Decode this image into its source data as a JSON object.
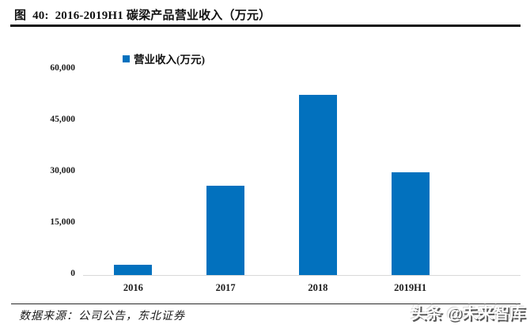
{
  "header": {
    "title": "图  40:  2016-2019H1 碳梁产品营业收入（万元）"
  },
  "legend": {
    "label": "营业收入(万元)"
  },
  "chart_data": {
    "type": "bar",
    "title": "2016-2019H1 碳梁产品营业收入（万元）",
    "categories": [
      "2016",
      "2017",
      "2018",
      "2019H1"
    ],
    "values": [
      3000,
      26000,
      52500,
      30000
    ],
    "series_name": "营业收入(万元)",
    "xlabel": "",
    "ylabel": "",
    "ylim": [
      0,
      60000
    ],
    "yticks": [
      0,
      15000,
      30000,
      45000,
      60000
    ],
    "ytick_labels": [
      "0",
      "15,000",
      "30,000",
      "45,000",
      "60,000"
    ],
    "grid": false,
    "legend_position": "top-left",
    "bar_color": "#0271be",
    "axis_line_color": "#d9d9d9"
  },
  "footer": {
    "source": "数据来源：公司公告，东北证券"
  },
  "watermark": {
    "text": "头条 @未来智库"
  }
}
